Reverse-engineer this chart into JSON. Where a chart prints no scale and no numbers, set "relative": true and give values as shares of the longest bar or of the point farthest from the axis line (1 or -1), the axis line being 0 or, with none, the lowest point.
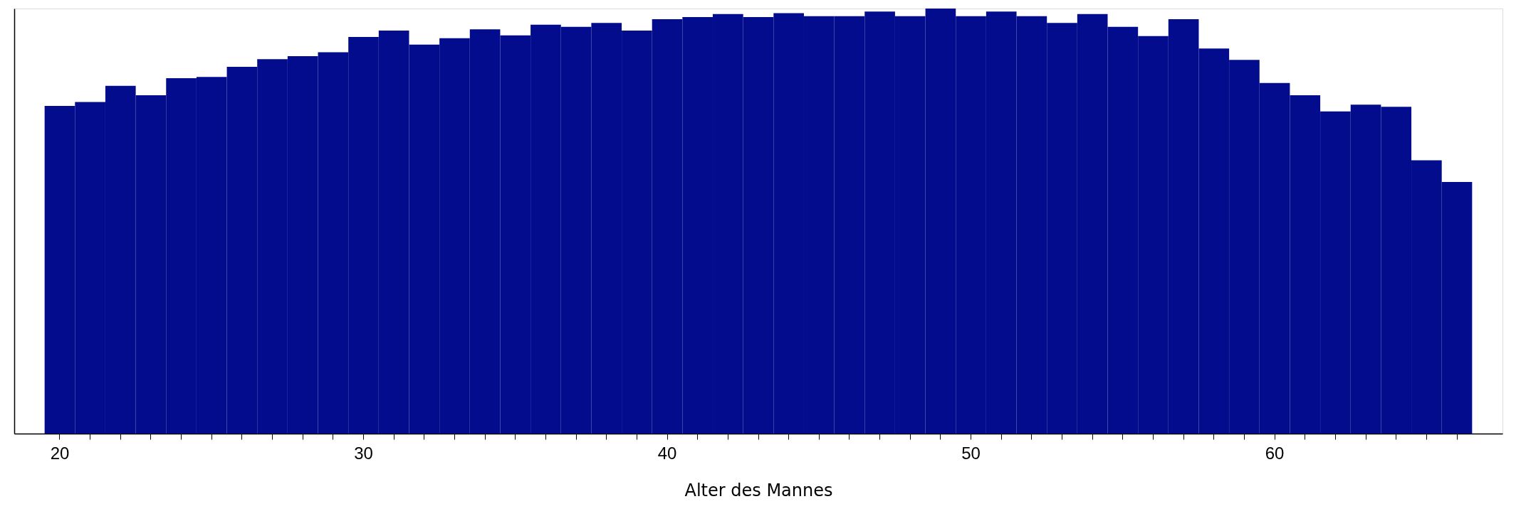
{
  "chart_data": {
    "type": "bar",
    "relative": true,
    "xlabel": "Alter des Mannes",
    "color": "#020c8c",
    "categories": [
      "20",
      null,
      null,
      null,
      null,
      null,
      null,
      null,
      null,
      null,
      "30",
      null,
      null,
      null,
      null,
      null,
      null,
      null,
      null,
      null,
      "40",
      null,
      null,
      null,
      null,
      null,
      null,
      null,
      null,
      null,
      "50",
      null,
      null,
      null,
      null,
      null,
      null,
      null,
      null,
      null,
      "60",
      null,
      null,
      null,
      null,
      null,
      null
    ],
    "values": [
      0.771,
      0.78,
      0.818,
      0.796,
      0.836,
      0.839,
      0.863,
      0.881,
      0.888,
      0.897,
      0.933,
      0.948,
      0.915,
      0.93,
      0.951,
      0.937,
      0.962,
      0.957,
      0.966,
      0.948,
      0.975,
      0.98,
      0.987,
      0.98,
      0.989,
      0.982,
      0.982,
      0.993,
      0.982,
      1,
      0.982,
      0.993,
      0.982,
      0.966,
      0.987,
      0.957,
      0.935,
      0.975,
      0.906,
      0.879,
      0.825,
      0.796,
      0.758,
      0.774,
      0.769,
      0.643,
      0.592
    ],
    "tick_labels": "x",
    "grid": false
  }
}
